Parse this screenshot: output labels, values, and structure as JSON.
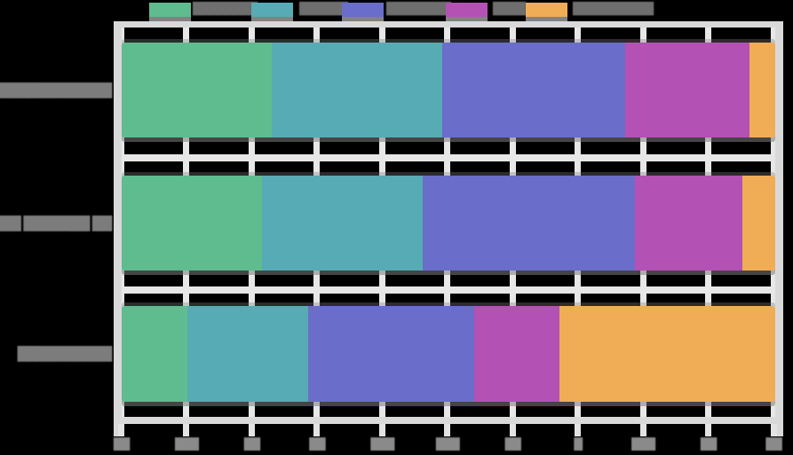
{
  "note": "Horizontal 100% stacked bar chart; all text in the source screenshot is blurred/illegible (rendered as gray smears), represented here with block glyphs.",
  "chart_data": {
    "type": "bar",
    "orientation": "horizontal",
    "stacked": true,
    "stacked_to_100_percent": true,
    "title": "",
    "xlabel": "",
    "ylabel": "",
    "xlim": [
      0,
      100
    ],
    "grid": true,
    "legend_position": "top",
    "categories": [
      "████████████",
      "████ ███████ ██",
      "██████████"
    ],
    "series": [
      {
        "name": "████████",
        "color": "#5fbc8e",
        "values": [
          23,
          21.5,
          10
        ]
      },
      {
        "name": "██████",
        "color": "#57abb4",
        "values": [
          26,
          24.5,
          18.5
        ]
      },
      {
        "name": "████████",
        "color": "#6a6dca",
        "values": [
          28,
          32.5,
          25.5
        ]
      },
      {
        "name": "████",
        "color": "#b451b4",
        "values": [
          19,
          16.5,
          13
        ]
      },
      {
        "name": "██████████",
        "color": "#f0ad55",
        "values": [
          4,
          5,
          33
        ]
      }
    ],
    "x_tick_labels": [
      "██",
      "███",
      "██",
      "██",
      "███",
      "███",
      "██",
      "█",
      "███",
      "██",
      "██"
    ]
  },
  "colors": {
    "background": "#000000",
    "gridline": "#e7e7e7",
    "spine": "#d9d9d9",
    "text": "#7c7c7c",
    "tick_text": "#8a8a8a",
    "legend_text": "#6e6e6e"
  }
}
